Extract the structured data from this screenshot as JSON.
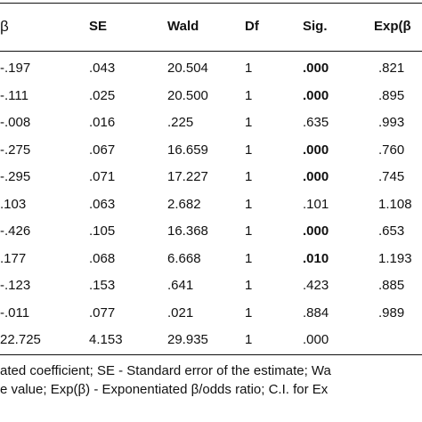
{
  "table": {
    "headers": {
      "beta": "β",
      "se": "SE",
      "wald": "Wald",
      "df": "Df",
      "sig": "Sig.",
      "exp": "Exp(β"
    },
    "rows": [
      {
        "beta": "-.197",
        "se": ".043",
        "wald": "20.504",
        "df": "1",
        "sig": ".000",
        "sig_bold": true,
        "exp": ".821"
      },
      {
        "beta": "-.111",
        "se": ".025",
        "wald": "20.500",
        "df": "1",
        "sig": ".000",
        "sig_bold": true,
        "exp": ".895"
      },
      {
        "beta": "-.008",
        "se": ".016",
        "wald": ".225",
        "df": "1",
        "sig": ".635",
        "sig_bold": false,
        "exp": ".993"
      },
      {
        "beta": "-.275",
        "se": ".067",
        "wald": "16.659",
        "df": "1",
        "sig": ".000",
        "sig_bold": true,
        "exp": ".760"
      },
      {
        "beta": "-.295",
        "se": ".071",
        "wald": "17.227",
        "df": "1",
        "sig": ".000",
        "sig_bold": true,
        "exp": ".745"
      },
      {
        "beta": ".103",
        "se": ".063",
        "wald": "2.682",
        "df": "1",
        "sig": ".101",
        "sig_bold": false,
        "exp": "1.108"
      },
      {
        "beta": "-.426",
        "se": ".105",
        "wald": "16.368",
        "df": "1",
        "sig": ".000",
        "sig_bold": true,
        "exp": ".653"
      },
      {
        "beta": ".177",
        "se": ".068",
        "wald": "6.668",
        "df": "1",
        "sig": ".010",
        "sig_bold": true,
        "exp": "1.193"
      },
      {
        "beta": "-.123",
        "se": ".153",
        "wald": ".641",
        "df": "1",
        "sig": ".423",
        "sig_bold": false,
        "exp": ".885"
      },
      {
        "beta": "-.011",
        "se": ".077",
        "wald": ".021",
        "df": "1",
        "sig": ".884",
        "sig_bold": false,
        "exp": ".989"
      },
      {
        "beta": "22.725",
        "se": "4.153",
        "wald": "29.935",
        "df": "1",
        "sig": ".000",
        "sig_bold": false,
        "exp": ""
      }
    ]
  },
  "footnote": {
    "line1": "ated coefficient; SE -  Standard error of the estimate; Wa",
    "line2": "e value; Exp(β) -  Exponentiated β/odds ratio; C.I. for Ex"
  }
}
